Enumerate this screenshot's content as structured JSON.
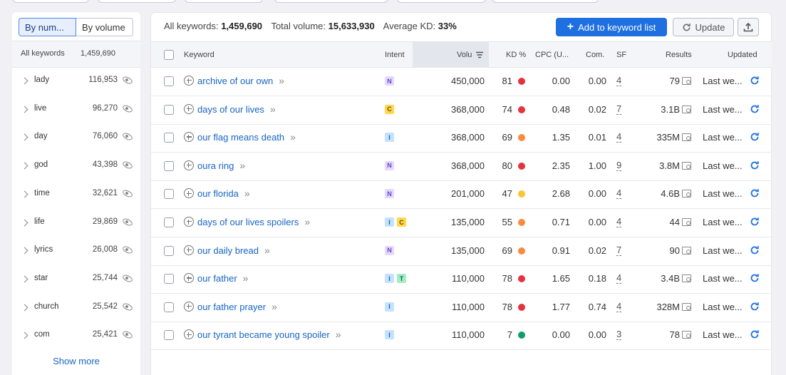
{
  "toggle": {
    "by_number": "By num...",
    "by_volume": "By volume"
  },
  "sidebar": {
    "header": {
      "label": "All keywords",
      "count": "1,459,690"
    },
    "items": [
      {
        "label": "lady",
        "count": "116,953"
      },
      {
        "label": "live",
        "count": "96,270"
      },
      {
        "label": "day",
        "count": "76,060"
      },
      {
        "label": "god",
        "count": "43,398"
      },
      {
        "label": "time",
        "count": "32,621"
      },
      {
        "label": "life",
        "count": "29,869"
      },
      {
        "label": "lyrics",
        "count": "26,008"
      },
      {
        "label": "star",
        "count": "25,744"
      },
      {
        "label": "church",
        "count": "25,542"
      },
      {
        "label": "com",
        "count": "25,421"
      }
    ],
    "show_more": "Show more"
  },
  "summary": {
    "all_keywords_label": "All keywords:",
    "all_keywords_value": "1,459,690",
    "total_volume_label": "Total volume:",
    "total_volume_value": "15,633,930",
    "avg_kd_label": "Average KD:",
    "avg_kd_value": "33%"
  },
  "toolbar": {
    "add_label": "Add to keyword list",
    "update_label": "Update"
  },
  "columns": {
    "keyword": "Keyword",
    "intent": "Intent",
    "volume": "Volu",
    "kd": "KD %",
    "cpc": "CPC (U...",
    "com": "Com.",
    "sf": "SF",
    "results": "Results",
    "updated": "Updated"
  },
  "intent_colors": {
    "N": {
      "bg": "#e3d9fb",
      "fg": "#6b3fd1"
    },
    "C": {
      "bg": "#ffd84d",
      "fg": "#6b4a00"
    },
    "I": {
      "bg": "#c4e2fb",
      "fg": "#2565a8"
    },
    "T": {
      "bg": "#a6ecc7",
      "fg": "#126b3d"
    }
  },
  "kd_colors": {
    "red": "#e5323e",
    "orange": "#fb8b3c",
    "yellow": "#fcc532",
    "green": "#0f9d6b"
  },
  "rows": [
    {
      "keyword": "archive of our own",
      "intents": [
        "N"
      ],
      "volume": "450,000",
      "kd": "81",
      "kd_color": "red",
      "cpc": "0.00",
      "com": "0.00",
      "sf": "4",
      "results": "79",
      "updated": "Last we..."
    },
    {
      "keyword": "days of our lives",
      "intents": [
        "C"
      ],
      "volume": "368,000",
      "kd": "74",
      "kd_color": "red",
      "cpc": "0.48",
      "com": "0.02",
      "sf": "7",
      "results": "3.1B",
      "updated": "Last we..."
    },
    {
      "keyword": "our flag means death",
      "intents": [
        "I"
      ],
      "volume": "368,000",
      "kd": "69",
      "kd_color": "orange",
      "cpc": "1.35",
      "com": "0.01",
      "sf": "4",
      "results": "335M",
      "updated": "Last we..."
    },
    {
      "keyword": "oura ring",
      "intents": [
        "N"
      ],
      "volume": "368,000",
      "kd": "80",
      "kd_color": "red",
      "cpc": "2.35",
      "com": "1.00",
      "sf": "9",
      "results": "3.8M",
      "updated": "Last we..."
    },
    {
      "keyword": "our florida",
      "intents": [
        "N"
      ],
      "volume": "201,000",
      "kd": "47",
      "kd_color": "yellow",
      "cpc": "2.68",
      "com": "0.00",
      "sf": "4",
      "results": "4.6B",
      "updated": "Last we..."
    },
    {
      "keyword": "days of our lives spoilers",
      "intents": [
        "I",
        "C"
      ],
      "volume": "135,000",
      "kd": "55",
      "kd_color": "orange",
      "cpc": "0.71",
      "com": "0.00",
      "sf": "4",
      "results": "44",
      "updated": "Last we..."
    },
    {
      "keyword": "our daily bread",
      "intents": [
        "N"
      ],
      "volume": "135,000",
      "kd": "69",
      "kd_color": "orange",
      "cpc": "0.91",
      "com": "0.02",
      "sf": "7",
      "results": "90",
      "updated": "Last we..."
    },
    {
      "keyword": "our father",
      "intents": [
        "I",
        "T"
      ],
      "volume": "110,000",
      "kd": "78",
      "kd_color": "red",
      "cpc": "1.65",
      "com": "0.18",
      "sf": "4",
      "results": "3.4B",
      "updated": "Last we..."
    },
    {
      "keyword": "our father prayer",
      "intents": [
        "I"
      ],
      "volume": "110,000",
      "kd": "78",
      "kd_color": "red",
      "cpc": "1.77",
      "com": "0.74",
      "sf": "4",
      "results": "328M",
      "updated": "Last we..."
    },
    {
      "keyword": "our tyrant became young spoiler",
      "intents": [
        "I"
      ],
      "volume": "110,000",
      "kd": "7",
      "kd_color": "green",
      "cpc": "0.00",
      "com": "0.00",
      "sf": "3",
      "results": "78",
      "updated": "Last we..."
    }
  ]
}
